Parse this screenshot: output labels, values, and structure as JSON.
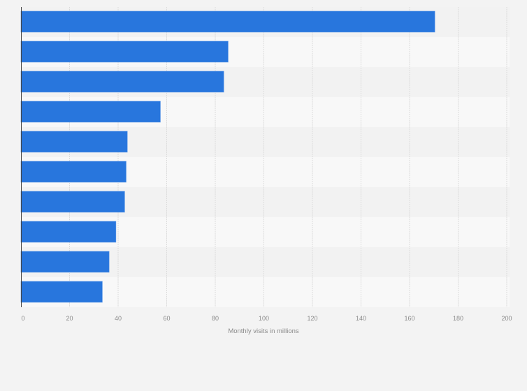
{
  "chart_data": {
    "type": "bar",
    "orientation": "horizontal",
    "categories": [
      "",
      "",
      "",
      "",
      "",
      "",
      "",
      "",
      "",
      ""
    ],
    "values": [
      170.4,
      85.3,
      83.5,
      57.4,
      43.8,
      43.3,
      42.7,
      39.1,
      36.3,
      33.5
    ],
    "title": "",
    "xlabel": "Monthly visits in millions",
    "ylabel": "",
    "xlim": [
      0,
      200
    ],
    "xticks": [
      "0",
      "20",
      "40",
      "60",
      "80",
      "100",
      "120",
      "140",
      "160",
      "180",
      "200"
    ],
    "grid": true,
    "bar_color": "#2876dd",
    "band_colors": [
      "#f2f2f2",
      "#f8f8f8"
    ]
  }
}
